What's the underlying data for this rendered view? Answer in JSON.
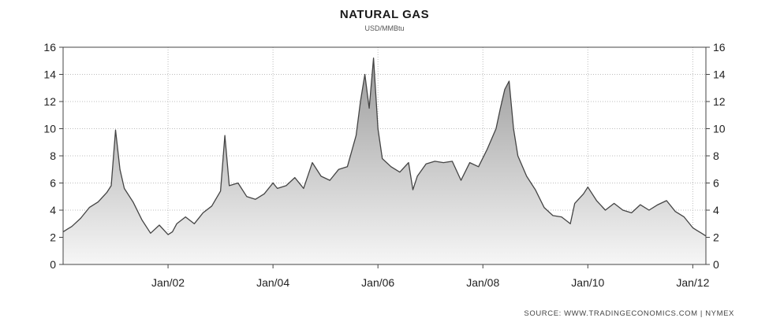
{
  "chart_data": {
    "type": "area",
    "title": "NATURAL GAS",
    "subtitle": "USD/MMBtu",
    "source": "SOURCE:  WWW.TRADINGECONOMICS.COM  |  NYMEX",
    "ylim": [
      0,
      16
    ],
    "yticks": [
      0,
      2,
      4,
      6,
      8,
      10,
      12,
      14,
      16
    ],
    "xlim": [
      "2000-01",
      "2012-04"
    ],
    "xticks": [
      {
        "date": "2002-01",
        "label": "Jan/02"
      },
      {
        "date": "2004-01",
        "label": "Jan/04"
      },
      {
        "date": "2006-01",
        "label": "Jan/06"
      },
      {
        "date": "2008-01",
        "label": "Jan/08"
      },
      {
        "date": "2010-01",
        "label": "Jan/10"
      },
      {
        "date": "2012-01",
        "label": "Jan/12"
      }
    ],
    "grid": true,
    "fill_color": "#c8c8c8",
    "line_color": "#444444",
    "series": [
      {
        "x": [
          "2000-01",
          "2000-02",
          "2000-03",
          "2000-05",
          "2000-07",
          "2000-09",
          "2000-11",
          "2000-12",
          "2001-01",
          "2001-02",
          "2001-03",
          "2001-05",
          "2001-07",
          "2001-09",
          "2001-11",
          "2002-01",
          "2002-02",
          "2002-03",
          "2002-05",
          "2002-07",
          "2002-09",
          "2002-11",
          "2003-01",
          "2003-02",
          "2003-03",
          "2003-05",
          "2003-07",
          "2003-09",
          "2003-11",
          "2004-01",
          "2004-02",
          "2004-04",
          "2004-06",
          "2004-08",
          "2004-10",
          "2004-12",
          "2005-02",
          "2005-04",
          "2005-06",
          "2005-08",
          "2005-09",
          "2005-10",
          "2005-11",
          "2005-12",
          "2006-01",
          "2006-02",
          "2006-04",
          "2006-06",
          "2006-08",
          "2006-09",
          "2006-10",
          "2006-12",
          "2007-02",
          "2007-04",
          "2007-06",
          "2007-08",
          "2007-10",
          "2007-12",
          "2008-02",
          "2008-04",
          "2008-05",
          "2008-06",
          "2008-07",
          "2008-08",
          "2008-09",
          "2008-11",
          "2009-01",
          "2009-03",
          "2009-05",
          "2009-07",
          "2009-09",
          "2009-10",
          "2009-12",
          "2010-01",
          "2010-03",
          "2010-05",
          "2010-07",
          "2010-09",
          "2010-11",
          "2011-01",
          "2011-03",
          "2011-05",
          "2011-07",
          "2011-09",
          "2011-11",
          "2012-01",
          "2012-02",
          "2012-03",
          "2012-04"
        ],
        "y": [
          2.4,
          2.6,
          2.8,
          3.4,
          4.2,
          4.6,
          5.3,
          5.8,
          9.9,
          7.0,
          5.6,
          4.6,
          3.3,
          2.3,
          2.9,
          2.2,
          2.4,
          3.0,
          3.5,
          3.0,
          3.8,
          4.3,
          5.4,
          9.5,
          5.8,
          6.0,
          5.0,
          4.8,
          5.2,
          6.0,
          5.6,
          5.8,
          6.4,
          5.6,
          7.5,
          6.5,
          6.2,
          7.0,
          7.2,
          9.5,
          12.0,
          14.0,
          11.5,
          15.2,
          10.0,
          7.8,
          7.2,
          6.8,
          7.5,
          5.5,
          6.5,
          7.4,
          7.6,
          7.5,
          7.6,
          6.2,
          7.5,
          7.2,
          8.5,
          10.0,
          11.5,
          12.9,
          13.5,
          10.0,
          8.0,
          6.5,
          5.5,
          4.2,
          3.6,
          3.5,
          3.0,
          4.5,
          5.2,
          5.7,
          4.7,
          4.0,
          4.5,
          4.0,
          3.8,
          4.4,
          4.0,
          4.4,
          4.7,
          3.9,
          3.5,
          2.7,
          2.5,
          2.3,
          2.1
        ]
      }
    ]
  }
}
